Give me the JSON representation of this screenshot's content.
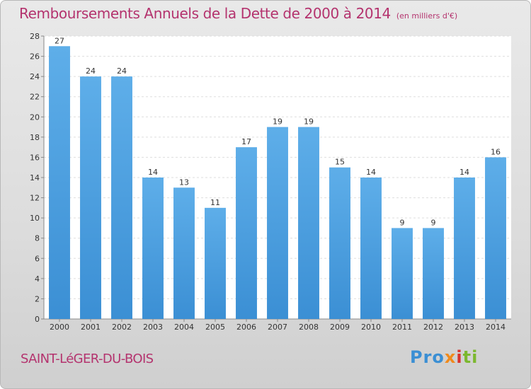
{
  "chart_data": {
    "type": "bar",
    "title": "Remboursements Annuels de la Dette de 2000 à 2014",
    "subtitle": "(en milliers d'€)",
    "xlabel": "",
    "ylabel": "",
    "categories": [
      "2000",
      "2001",
      "2002",
      "2003",
      "2004",
      "2005",
      "2006",
      "2007",
      "2008",
      "2009",
      "2010",
      "2011",
      "2012",
      "2013",
      "2014"
    ],
    "values": [
      27,
      24,
      24,
      14,
      13,
      11,
      17,
      19,
      19,
      15,
      14,
      9,
      9,
      14,
      16
    ],
    "data_labels": [
      "27",
      "24",
      "24",
      "14",
      "13",
      "11",
      "17",
      "19",
      "19",
      "15",
      "14",
      "9",
      "9",
      "14",
      "16"
    ],
    "ylim": [
      0,
      28
    ],
    "yticks": [
      "0",
      "2",
      "4",
      "6",
      "8",
      "10",
      "12",
      "14",
      "16",
      "18",
      "20",
      "22",
      "24",
      "26",
      "28"
    ],
    "grid": true,
    "colors": {
      "bar": "#3b8fd4",
      "bar_light": "#5eaee9",
      "text": "#b4336e"
    }
  },
  "footer": {
    "commune": "SAINT-LéGER-DU-BOIS",
    "logo": {
      "p1": "Pro",
      "p2": "x",
      "p3": "i",
      "p4": "ti"
    }
  }
}
